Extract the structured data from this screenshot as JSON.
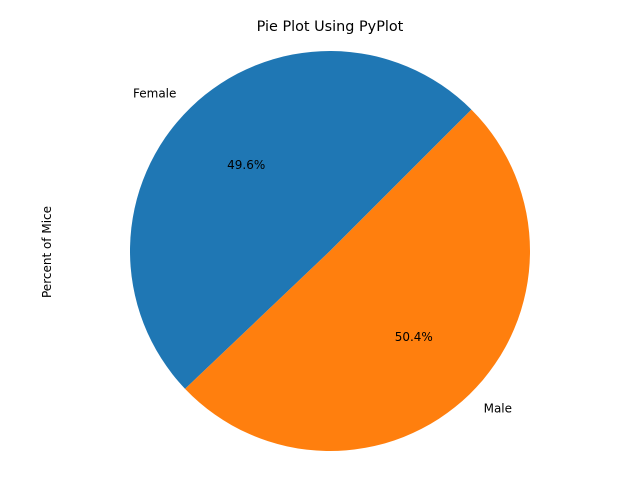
{
  "chart_data": {
    "type": "pie",
    "title": "Pie Plot Using PyPlot",
    "ylabel": "Percent of Mice",
    "categories": [
      "Female",
      "Male"
    ],
    "values": [
      49.6,
      50.4
    ],
    "percent_labels": [
      "49.6%",
      "50.4%"
    ],
    "colors": [
      "#1f77b4",
      "#ff7f0e"
    ],
    "start_angle_deg": 45,
    "direction": "counterclockwise"
  }
}
